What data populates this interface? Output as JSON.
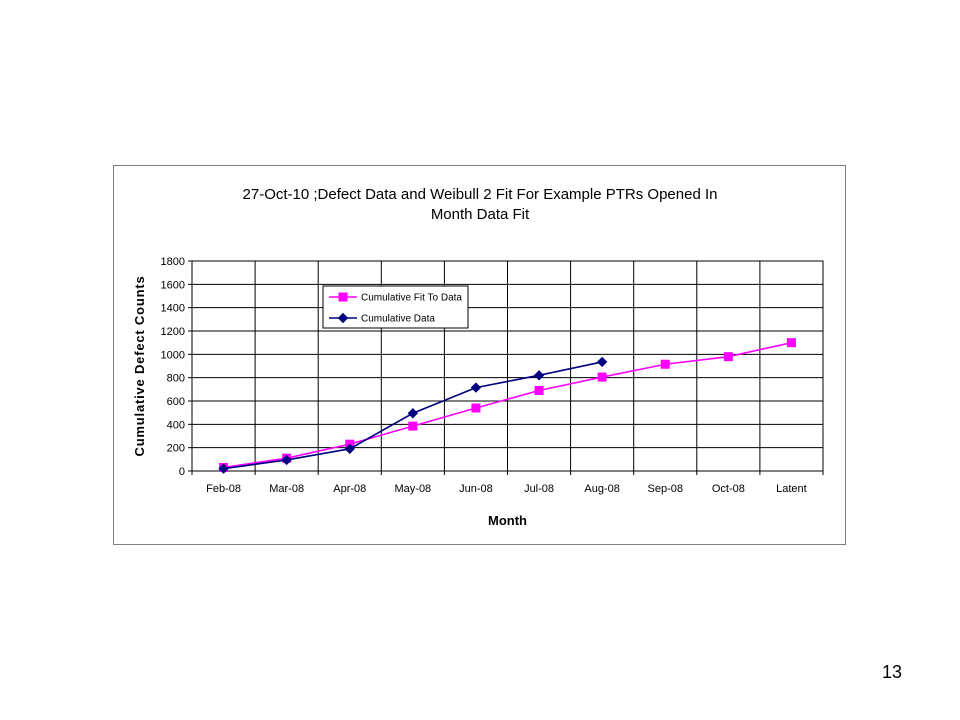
{
  "page": {
    "number": "13"
  },
  "chart_data": {
    "type": "line",
    "title": [
      "27-Oct-10 ;Defect Data and  Weibull  2  Fit For Example PTRs Opened  In",
      "Month Data Fit"
    ],
    "xlabel": "Month",
    "ylabel": "Cumulative Defect Counts",
    "categories": [
      "Feb-08",
      "Mar-08",
      "Apr-08",
      "May-08",
      "Jun-08",
      "Jul-08",
      "Aug-08",
      "Sep-08",
      "Oct-08",
      "Latent"
    ],
    "ylim": [
      0,
      1800
    ],
    "yticks": [
      0,
      200,
      400,
      600,
      800,
      1000,
      1200,
      1400,
      1600,
      1800
    ],
    "grid": true,
    "legend_position": "top-left",
    "series": [
      {
        "name": "Cumulative Fit To Data",
        "color": "#ff00ff",
        "marker": "square",
        "values": [
          30,
          110,
          230,
          385,
          540,
          690,
          805,
          915,
          980,
          1100
        ]
      },
      {
        "name": "Cumulative Data",
        "color": "#000080",
        "marker": "diamond",
        "values": [
          20,
          95,
          190,
          495,
          715,
          820,
          935,
          null,
          null,
          null
        ]
      }
    ]
  }
}
